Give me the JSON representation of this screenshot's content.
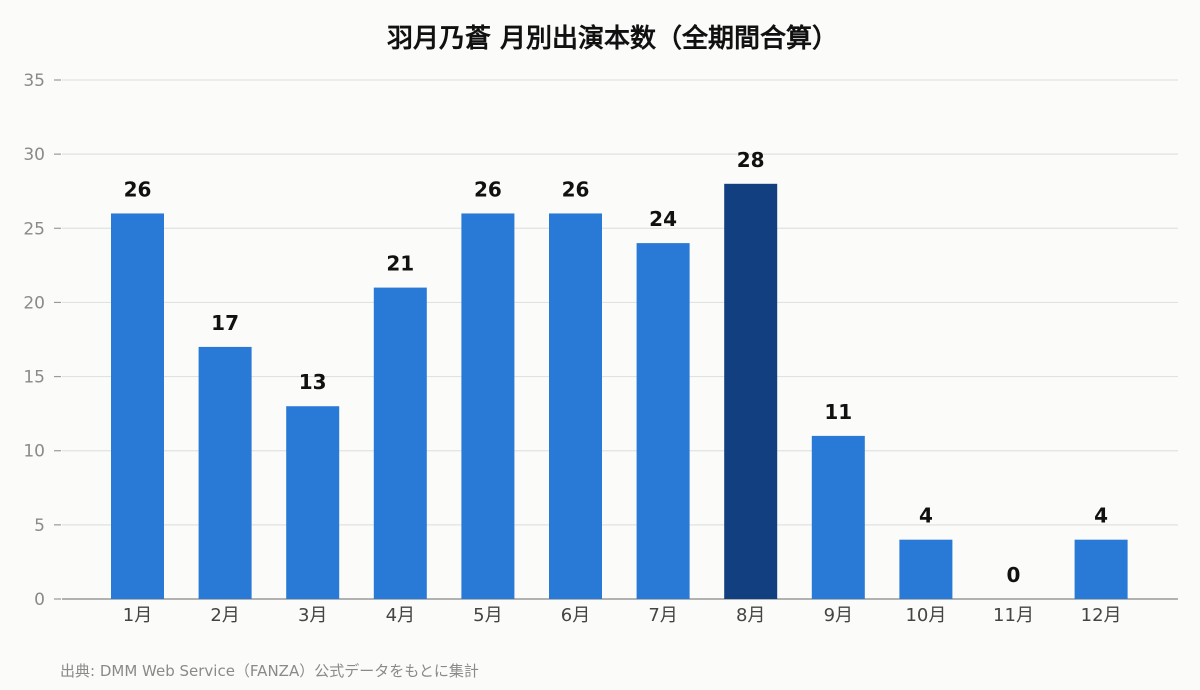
{
  "chart_data": {
    "type": "bar",
    "title": "羽月乃蒼 月別出演本数（全期間合算）",
    "categories": [
      "1月",
      "2月",
      "3月",
      "4月",
      "5月",
      "6月",
      "7月",
      "8月",
      "9月",
      "10月",
      "11月",
      "12月"
    ],
    "values": [
      26,
      17,
      13,
      21,
      26,
      26,
      24,
      28,
      11,
      4,
      0,
      4
    ],
    "ylim": [
      0,
      35
    ],
    "yticks": [
      0,
      5,
      10,
      15,
      20,
      25,
      30,
      35
    ],
    "xlabel": "",
    "ylabel": "",
    "grid": true,
    "highlight_index": 7,
    "colors": {
      "bar": "#2979d6",
      "highlight": "#113f80",
      "grid": "#e2e2e2",
      "axis": "#9a9a9a"
    }
  },
  "source": "出典: DMM Web Service（FANZA）公式データをもとに集計"
}
